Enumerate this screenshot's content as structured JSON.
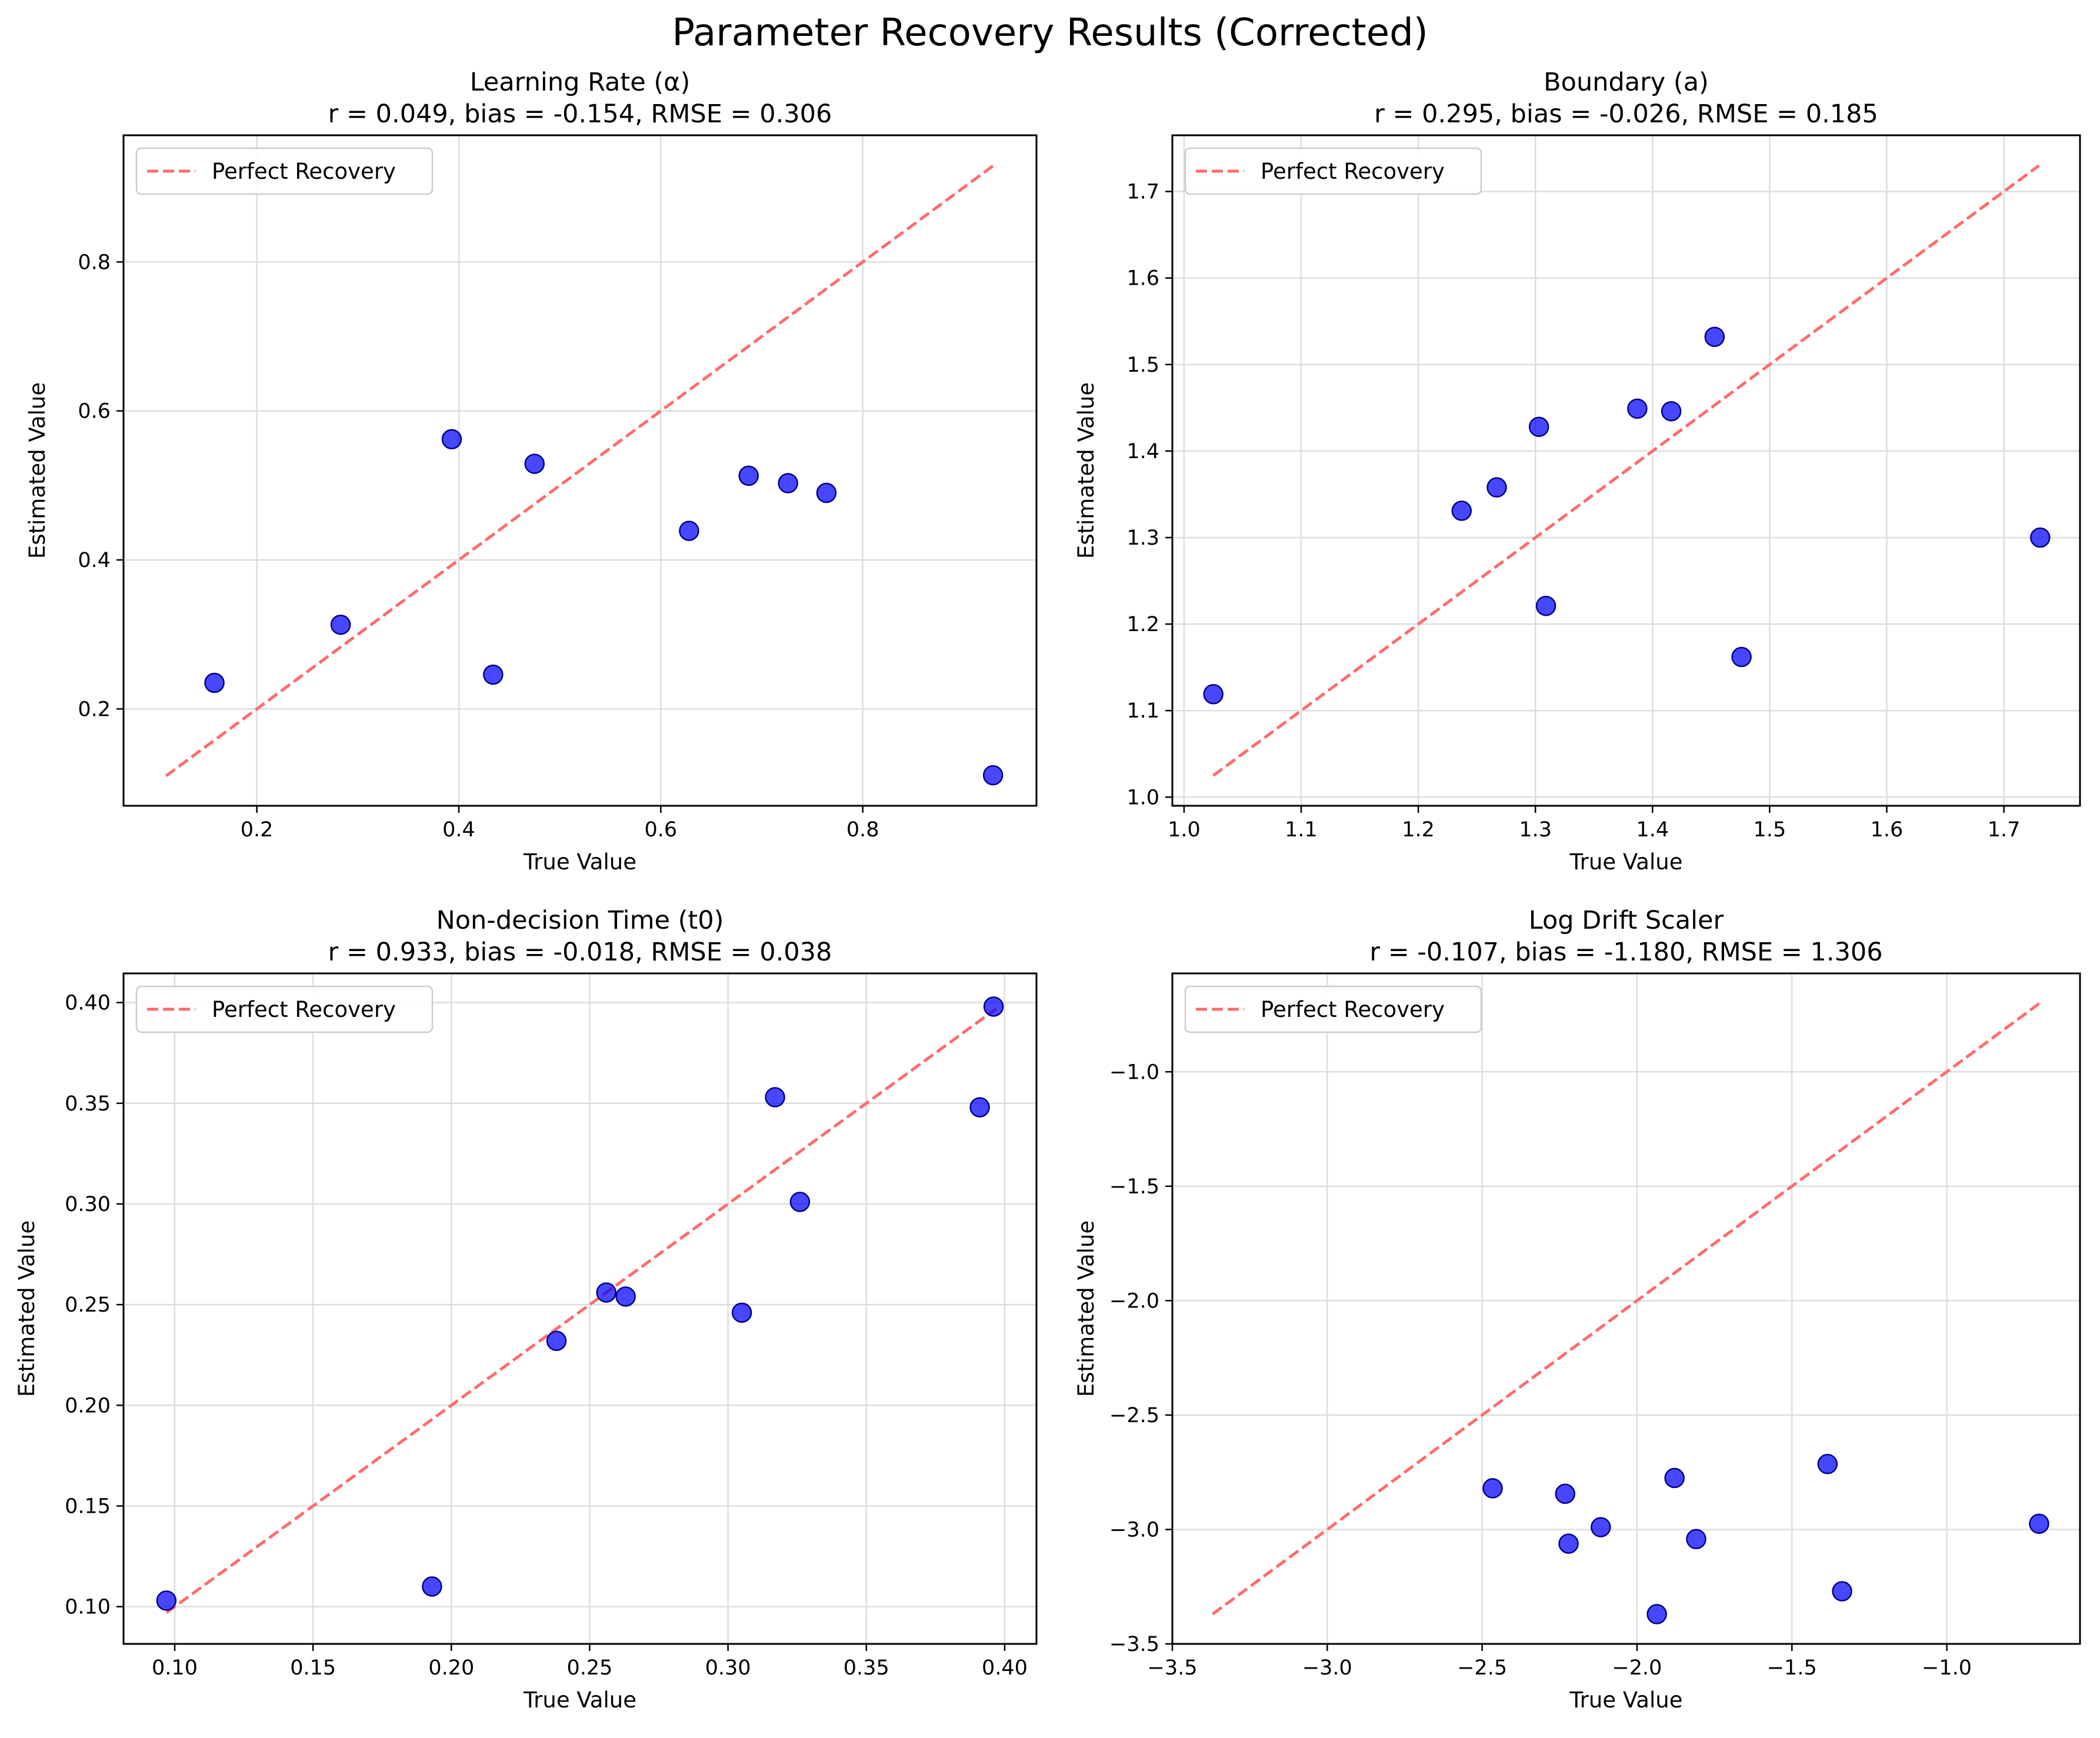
{
  "suptitle": "Parameter Recovery Results (Corrected)",
  "colors": {
    "points": "#0000ff",
    "point_edge": "#00008b",
    "diagonal": "#ff6b6b",
    "grid": "#dddddd"
  },
  "chart_data": [
    {
      "type": "scatter",
      "title": "Learning Rate (α)",
      "subtitle": "r = 0.049, bias = -0.154, RMSE = 0.306",
      "xlabel": "True Value",
      "ylabel": "Estimated Value",
      "legend": {
        "position": "upper-left",
        "entries": [
          "Perfect Recovery"
        ]
      },
      "grid": true,
      "xlim": [
        0.068,
        0.972
      ],
      "ylim": [
        0.07,
        0.97
      ],
      "xticks": [
        0.2,
        0.4,
        0.6,
        0.8
      ],
      "xticklabels": [
        "0.2",
        "0.4",
        "0.6",
        "0.8"
      ],
      "yticks": [
        0.2,
        0.4,
        0.6,
        0.8
      ],
      "yticklabels": [
        "0.2",
        "0.4",
        "0.6",
        "0.8"
      ],
      "reference_line": {
        "from": [
          0.11,
          0.11
        ],
        "to": [
          0.93,
          0.93
        ]
      },
      "x": [
        0.158,
        0.283,
        0.393,
        0.434,
        0.475,
        0.628,
        0.687,
        0.726,
        0.764,
        0.929
      ],
      "y": [
        0.235,
        0.313,
        0.562,
        0.246,
        0.529,
        0.439,
        0.513,
        0.503,
        0.49,
        0.111
      ]
    },
    {
      "type": "scatter",
      "title": "Boundary (a)",
      "subtitle": "r = 0.295, bias = -0.026, RMSE = 0.185",
      "xlabel": "True Value",
      "ylabel": "Estimated Value",
      "legend": {
        "position": "upper-left",
        "entries": [
          "Perfect Recovery"
        ]
      },
      "grid": true,
      "xlim": [
        0.99,
        1.765
      ],
      "ylim": [
        0.99,
        1.765
      ],
      "xticks": [
        1.0,
        1.1,
        1.2,
        1.3,
        1.4,
        1.5,
        1.6,
        1.7
      ],
      "xticklabels": [
        "1.0",
        "1.1",
        "1.2",
        "1.3",
        "1.4",
        "1.5",
        "1.6",
        "1.7"
      ],
      "yticks": [
        1.0,
        1.1,
        1.2,
        1.3,
        1.4,
        1.5,
        1.6,
        1.7
      ],
      "yticklabels": [
        "1.0",
        "1.1",
        "1.2",
        "1.3",
        "1.4",
        "1.5",
        "1.6",
        "1.7"
      ],
      "reference_line": {
        "from": [
          1.025,
          1.025
        ],
        "to": [
          1.73,
          1.73
        ]
      },
      "x": [
        1.025,
        1.237,
        1.267,
        1.303,
        1.309,
        1.387,
        1.416,
        1.453,
        1.476,
        1.731
      ],
      "y": [
        1.119,
        1.331,
        1.358,
        1.428,
        1.221,
        1.449,
        1.446,
        1.532,
        1.162,
        1.3
      ]
    },
    {
      "type": "scatter",
      "title": "Non-decision Time (t0)",
      "subtitle": "r = 0.933, bias = -0.018, RMSE = 0.038",
      "xlabel": "True Value",
      "ylabel": "Estimated Value",
      "legend": {
        "position": "upper-left",
        "entries": [
          "Perfect Recovery"
        ]
      },
      "grid": true,
      "xlim": [
        0.0815,
        0.4115
      ],
      "ylim": [
        0.0815,
        0.4145
      ],
      "xticks": [
        0.1,
        0.15,
        0.2,
        0.25,
        0.3,
        0.35,
        0.4
      ],
      "xticklabels": [
        "0.10",
        "0.15",
        "0.20",
        "0.25",
        "0.30",
        "0.35",
        "0.40"
      ],
      "yticks": [
        0.1,
        0.15,
        0.2,
        0.25,
        0.3,
        0.35,
        0.4
      ],
      "yticklabels": [
        "0.10",
        "0.15",
        "0.20",
        "0.25",
        "0.30",
        "0.35",
        "0.40"
      ],
      "reference_line": {
        "from": [
          0.097,
          0.097
        ],
        "to": [
          0.397,
          0.397
        ]
      },
      "x": [
        0.097,
        0.193,
        0.238,
        0.256,
        0.263,
        0.305,
        0.317,
        0.326,
        0.391,
        0.396
      ],
      "y": [
        0.103,
        0.11,
        0.232,
        0.256,
        0.254,
        0.246,
        0.353,
        0.301,
        0.348,
        0.398
      ]
    },
    {
      "type": "scatter",
      "title": "Log Drift Scaler",
      "subtitle": "r = -0.107, bias = -1.180, RMSE = 1.306",
      "xlabel": "True Value",
      "ylabel": "Estimated Value",
      "legend": {
        "position": "upper-left",
        "entries": [
          "Perfect Recovery"
        ]
      },
      "grid": true,
      "xlim": [
        -3.5,
        -0.57
      ],
      "ylim": [
        -3.5,
        -0.57
      ],
      "xticks": [
        -3.5,
        -3.0,
        -2.5,
        -2.0,
        -1.5,
        -1.0
      ],
      "xticklabels": [
        "−3.5",
        "−3.0",
        "−2.5",
        "−2.0",
        "−1.5",
        "−1.0"
      ],
      "yticks": [
        -3.5,
        -3.0,
        -2.5,
        -2.0,
        -1.5,
        -1.0
      ],
      "yticklabels": [
        "−3.5",
        "−3.0",
        "−2.5",
        "−2.0",
        "−1.5",
        "−1.0"
      ],
      "reference_line": {
        "from": [
          -3.37,
          -3.37
        ],
        "to": [
          -0.7,
          -0.7
        ]
      },
      "x": [
        -2.466,
        -2.232,
        -2.221,
        -2.117,
        -1.936,
        -1.879,
        -1.809,
        -1.385,
        -1.338,
        -0.702
      ],
      "y": [
        -2.82,
        -2.844,
        -3.062,
        -2.99,
        -3.37,
        -2.775,
        -3.042,
        -2.714,
        -3.27,
        -2.975
      ]
    }
  ]
}
